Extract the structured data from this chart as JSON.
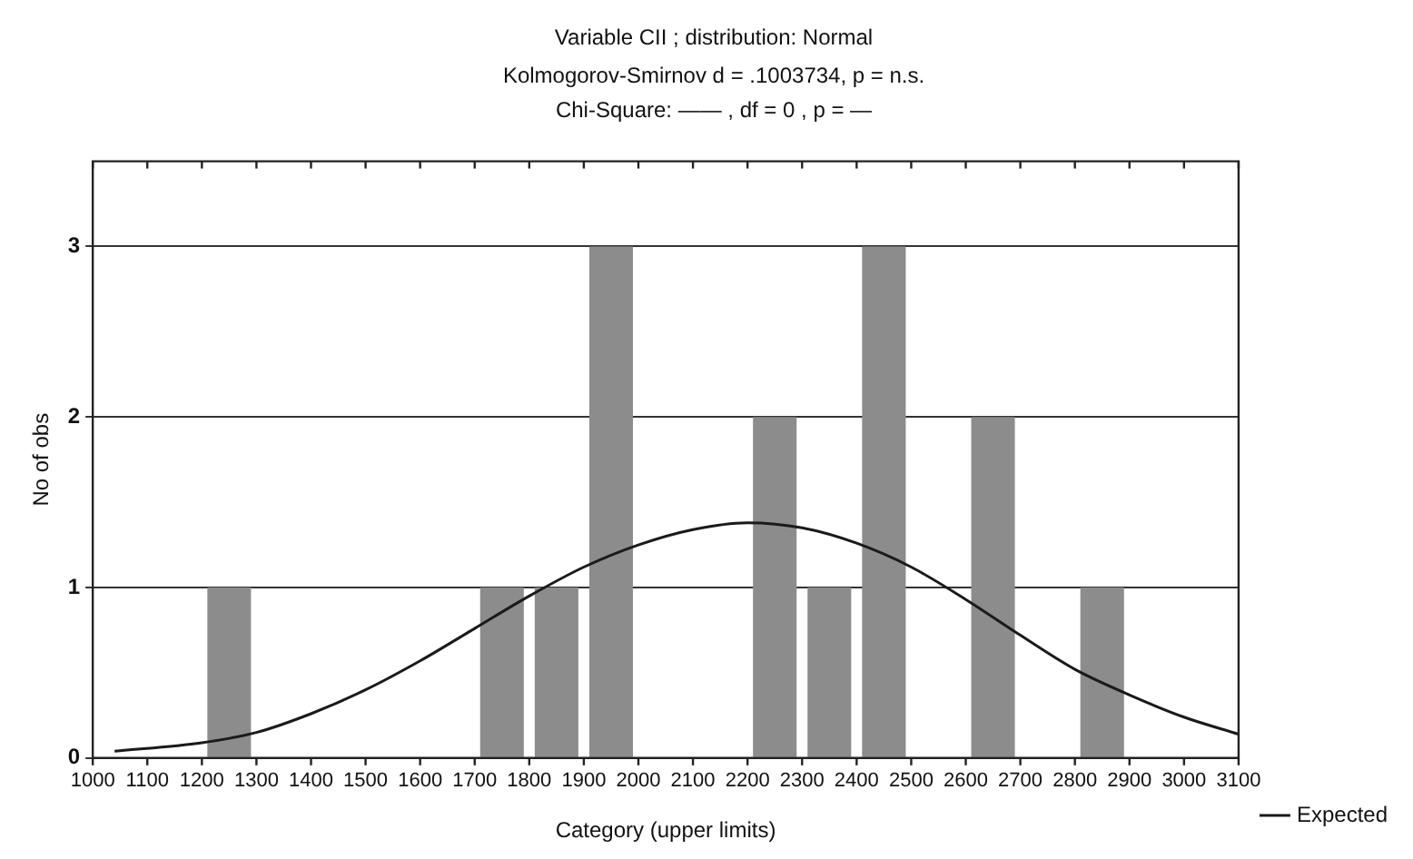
{
  "chart_data": {
    "type": "histogram",
    "title": "Variable CII ; distribution: Normal",
    "subtitle": "Kolmogorov-Smirnov d = .1003734, p = n.s.",
    "annotations": [
      "Chi-Square: —— , df = 0 , p = —"
    ],
    "xlabel": "Category (upper limits)",
    "ylabel": "No of obs",
    "xlim": [
      1000,
      3100
    ],
    "xticks": [
      1000,
      1100,
      1200,
      1300,
      1400,
      1500,
      1600,
      1700,
      1800,
      1900,
      2000,
      2100,
      2200,
      2300,
      2400,
      2500,
      2600,
      2700,
      2800,
      2900,
      3000,
      3100
    ],
    "ylim": [
      0,
      3.5
    ],
    "yticks": [
      0,
      1,
      2,
      3
    ],
    "grid": "y",
    "legend": "bottom right",
    "color": "#8c8c8c",
    "bins": [
      1000,
      1100,
      1200,
      1300,
      1400,
      1500,
      1600,
      1700,
      1800,
      1900,
      2000,
      2100,
      2200,
      2300,
      2400,
      2500,
      2600,
      2700,
      2800,
      2900,
      3000,
      3100
    ],
    "values": [
      0,
      0,
      1,
      0,
      0,
      0,
      0,
      1,
      1,
      3,
      0,
      0,
      2,
      1,
      3,
      0,
      2,
      0,
      1,
      0,
      0
    ],
    "series": [
      {
        "type": "line",
        "name": "Expected",
        "color": "#1a1a1a",
        "x": [
          1040,
          1200,
          1300,
          1400,
          1500,
          1600,
          1700,
          1800,
          1900,
          2000,
          2100,
          2200,
          2300,
          2400,
          2500,
          2600,
          2700,
          2800,
          2900,
          3000,
          3100
        ],
        "values": [
          0.04,
          0.09,
          0.15,
          0.26,
          0.4,
          0.57,
          0.76,
          0.95,
          1.12,
          1.25,
          1.34,
          1.38,
          1.35,
          1.26,
          1.12,
          0.93,
          0.72,
          0.52,
          0.37,
          0.24,
          0.14
        ]
      }
    ]
  }
}
